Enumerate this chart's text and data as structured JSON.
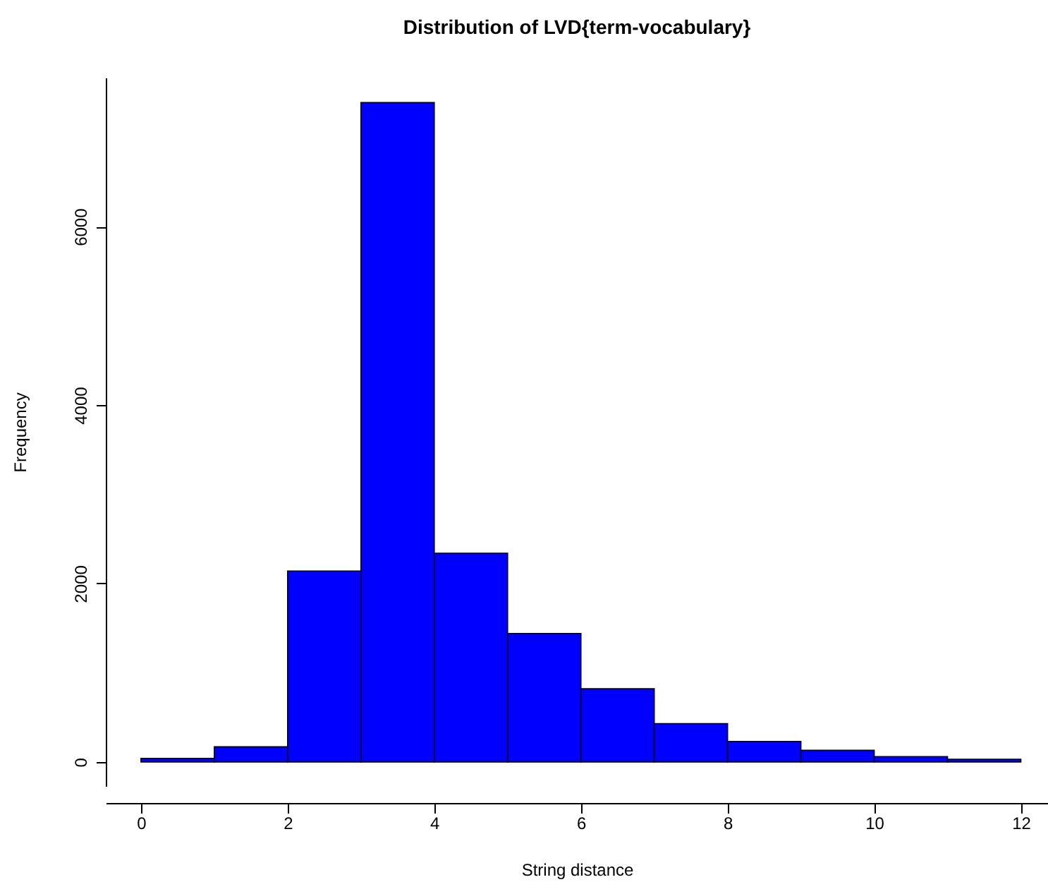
{
  "chart_data": {
    "type": "histogram",
    "title": "Distribution of LVD{term-vocabulary}",
    "xlabel": "String distance",
    "ylabel": "Frequency",
    "bins": [
      0,
      1,
      2,
      3,
      4,
      5,
      6,
      7,
      8,
      9,
      10,
      11,
      12
    ],
    "values": [
      40,
      170,
      2140,
      7390,
      2340,
      1440,
      820,
      430,
      230,
      130,
      60,
      30
    ],
    "color": "#0000ff",
    "xlim": [
      -0.48,
      12.37
    ],
    "ylim": [
      -270,
      7670
    ],
    "xticks": [
      0,
      2,
      4,
      6,
      8,
      10,
      12
    ],
    "yticks": [
      0,
      2000,
      4000,
      6000
    ],
    "grid": false
  }
}
